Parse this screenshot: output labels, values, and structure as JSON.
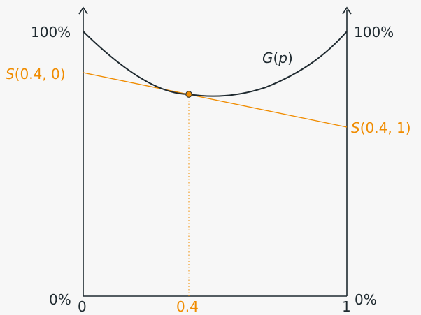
{
  "diagram": {
    "left_axis_top_label": "100%",
    "left_axis_bottom_label": "0%",
    "right_axis_top_label": "100%",
    "right_axis_bottom_label": "0%",
    "x_tick_left": "0",
    "x_tick_right": "1",
    "x_tick_marked": "0.4",
    "curve_label": {
      "prefix": "G",
      "open": "(",
      "arg": "p",
      "close": ")"
    },
    "tangent_left_label": {
      "prefix": "S",
      "args": "(0.4, 0)"
    },
    "tangent_right_label": {
      "prefix": "S",
      "args": "(0.4, 1)"
    },
    "colors": {
      "curve": "#1f2a30",
      "tangent": "#f08c00",
      "point": "#f08c00",
      "background": "#f7f7f7"
    }
  }
}
